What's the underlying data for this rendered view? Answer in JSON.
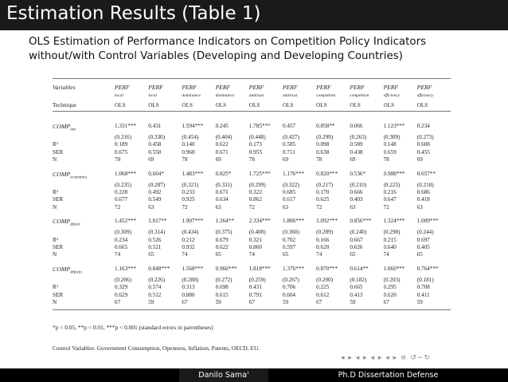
{
  "slide": {
    "title": "Estimation Results (Table 1)",
    "subtitle_line1": "OLS Estimation of Performance Indicators on Competition Policy Indicators",
    "subtitle_line2": "without/with Control Variables (Developing and Developing Countries)"
  },
  "table": {
    "row_label_variables": "Variables",
    "row_label_technique": "Technique",
    "headers": [
      "PERF",
      "PERF",
      "PERF",
      "PERF",
      "PERF",
      "PERF",
      "PERF",
      "PERF",
      "PERF",
      "PERF"
    ],
    "subheaders": [
      "local",
      "local",
      "dominance",
      "dominance",
      "antitrust",
      "antitrust",
      "competiton",
      "competiton",
      "efficiency",
      "efficiency"
    ],
    "techniques": [
      "OLS",
      "OLS",
      "OLS",
      "OLS",
      "OLS",
      "OLS",
      "OLS",
      "OLS",
      "OLS",
      "OLS"
    ],
    "stat_labels": {
      "r2": "R²",
      "ser": "SER",
      "n": "N"
    },
    "blocks": [
      {
        "name": "COMP",
        "sub": "law",
        "coef": [
          "1.331***",
          "0.431",
          "1.594***",
          "0.245",
          "1.785***",
          "0.457",
          "0.858**",
          "0.066",
          "1.123***",
          "0.234"
        ],
        "se": [
          "(0.316)",
          "(0.330)",
          "(0.454)",
          "(0.404)",
          "(0.448)",
          "(0.427)",
          "(0.299)",
          "(0.263)",
          "(0.309)",
          "(0.273)"
        ],
        "r2": [
          "0.189",
          "0.458",
          "0.140",
          "0.622",
          "0.173",
          "0.585",
          "0.098",
          "0.589",
          "0.148",
          "0.608"
        ],
        "ser": [
          "0.675",
          "0.550",
          "0.968",
          "0.671",
          "0.955",
          "0.711",
          "0.638",
          "0.438",
          "0.659",
          "0.455"
        ],
        "n": [
          "78",
          "69",
          "78",
          "69",
          "78",
          "69",
          "78",
          "69",
          "78",
          "69"
        ]
      },
      {
        "name": "COMP",
        "sub": "economics",
        "coef": [
          "1.068***",
          "0.604*",
          "1.483***",
          "0.825*",
          "1.725***",
          "1.176***",
          "0.820***",
          "0.536*",
          "0.988***",
          "0.657**"
        ],
        "se": [
          "(0.235)",
          "(0.287)",
          "(0.321)",
          "(0.331)",
          "(0.299)",
          "(0.322)",
          "(0.217)",
          "(0.210)",
          "(0.225)",
          "(0.218)"
        ],
        "r2": [
          "0.228",
          "0.492",
          "0.233",
          "0.671",
          "0.322",
          "0.685",
          "0.170",
          "0.666",
          "0.216",
          "0.686"
        ],
        "ser": [
          "0.677",
          "0.549",
          "0.925",
          "0.634",
          "0.862",
          "0.617",
          "0.625",
          "0.403",
          "0.647",
          "0.418"
        ],
        "n": [
          "72",
          "63",
          "72",
          "63",
          "72",
          "63",
          "72",
          "63",
          "72",
          "63"
        ]
      },
      {
        "name": "COMP",
        "sub": "dejure",
        "coef": [
          "1.452***",
          "1.017**",
          "1.907***",
          "1.264**",
          "2.334***",
          "1.806***",
          "1.092***",
          "0.856***",
          "1.324***",
          "1.009***"
        ],
        "se": [
          "(0.309)",
          "(0.314)",
          "(0.434)",
          "(0.375)",
          "(0.400)",
          "(0.360)",
          "(0.289)",
          "(0.240)",
          "(0.298)",
          "(0.244)"
        ],
        "r2": [
          "0.234",
          "0.526",
          "0.212",
          "0.679",
          "0.321",
          "0.702",
          "0.166",
          "0.667",
          "0.215",
          "0.697"
        ],
        "ser": [
          "0.665",
          "0.521",
          "0.932",
          "0.622",
          "0.860",
          "0.597",
          "0.620",
          "0.626",
          "0.640",
          "0.405"
        ],
        "n": [
          "74",
          "65",
          "74",
          "65",
          "74",
          "65",
          "74",
          "65",
          "74",
          "65"
        ]
      },
      {
        "name": "COMP",
        "sub": "defacto",
        "coef": [
          "1.163***",
          "0.848***",
          "1.568***",
          "0.960***",
          "1.818***",
          "1.376***",
          "0.870***",
          "0.614**",
          "1.060***",
          "0.764***"
        ],
        "se": [
          "(0.206)",
          "(0.226)",
          "(0.288)",
          "(0.272)",
          "(0.259)",
          "(0.267)",
          "(0.200)",
          "(0.182)",
          "(0.203)",
          "(0.181)"
        ],
        "r2": [
          "0.329",
          "0.574",
          "0.313",
          "0.698",
          "0.431",
          "0.706",
          "0.225",
          "0.665",
          "0.295",
          "0.708"
        ],
        "ser": [
          "0.629",
          "0.512",
          "0.880",
          "0.615",
          "0.791",
          "0.604",
          "0.612",
          "0.413",
          "0.620",
          "0.411"
        ],
        "n": [
          "67",
          "59",
          "67",
          "59",
          "67",
          "59",
          "67",
          "59",
          "67",
          "59"
        ]
      }
    ],
    "note_significance": "*p < 0.05, **p < 0.01, ***p < 0.001 (standard errors in parentheses)",
    "note_controls": "Control Variables: Government Consumption, Openness, Inflation, Patents, OECD, EU."
  },
  "navigation": {
    "symbols": "◂ ▸ ◂ ▸ ◂ ▸ ◂ ▸ ≡ ↺∽↻"
  },
  "footer": {
    "author": "Danilo Sama'",
    "talk_title": "Ph.D Dissertation Defense"
  }
}
